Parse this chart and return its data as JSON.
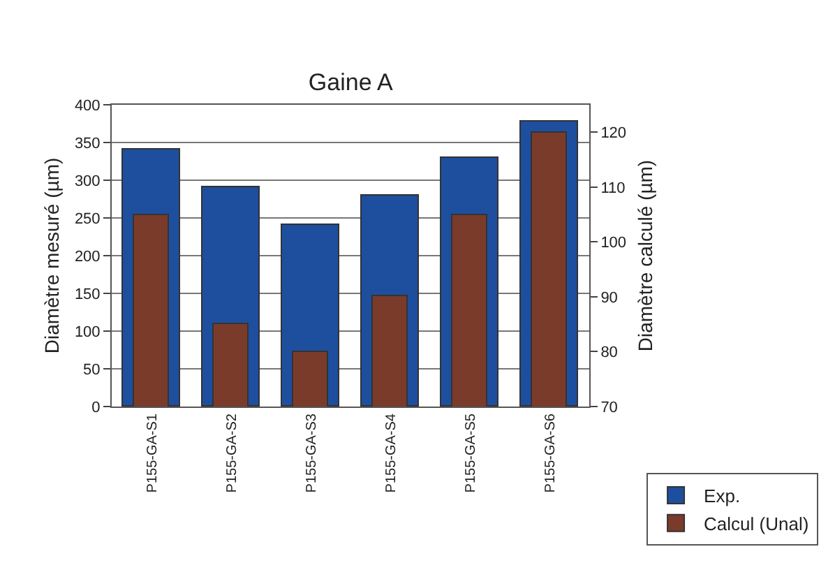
{
  "chart_data": {
    "type": "bar",
    "title": "Gaine A",
    "ylabel": "Diamètre mesuré (µm)",
    "y2label": "Diamètre calculé (µm)",
    "categories": [
      "P155-GA-S1",
      "P155-GA-S2",
      "P155-GA-S3",
      "P155-GA-S4",
      "P155-GA-S5",
      "P155-GA-S6"
    ],
    "series": [
      {
        "name": "Exp.",
        "color": "#1d4f9e",
        "values": [
          340,
          290,
          240,
          280,
          330,
          378
        ]
      },
      {
        "name": "Calcul (Unal)",
        "color": "#7b3b2b",
        "axis": "y2",
        "values": [
          105,
          85,
          80,
          90,
          105,
          120
        ]
      }
    ],
    "ylim": [
      0,
      400
    ],
    "yticks": [
      0,
      50,
      100,
      150,
      200,
      250,
      300,
      350,
      400
    ],
    "y2lim": [
      70,
      125
    ],
    "y2ticks": [
      70,
      80,
      90,
      100,
      110,
      120
    ],
    "grid": "y",
    "legend": "bottom right"
  }
}
